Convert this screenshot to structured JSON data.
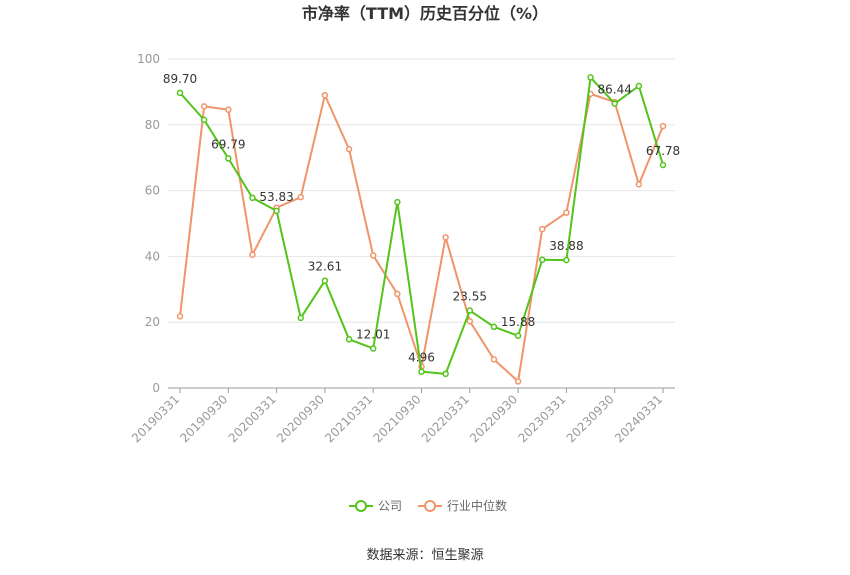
{
  "chart_data": {
    "type": "line",
    "title": "市净率（TTM）历史百分位（%）",
    "ylim": [
      0,
      100
    ],
    "yticks": [
      "0",
      "20",
      "40",
      "60",
      "80",
      "100"
    ],
    "categories": [
      "20190331",
      "20190630",
      "20190930",
      "20191231",
      "20200331",
      "20200630",
      "20200930",
      "20201231",
      "20210331",
      "20210630",
      "20210930",
      "20211231",
      "20220331",
      "20220630",
      "20220930",
      "20221231",
      "20230331",
      "20230630",
      "20230930",
      "20231231",
      "20240331"
    ],
    "x_tick_labels": [
      "20190331",
      "20190930",
      "20200331",
      "20200930",
      "20210331",
      "20210930",
      "20220331",
      "20220930",
      "20230331",
      "20230930",
      "20240331"
    ],
    "series": [
      {
        "name": "公司",
        "color": "#52c41a",
        "values": [
          89.7,
          81.5,
          69.79,
          57.8,
          53.83,
          21.3,
          32.61,
          14.8,
          12.01,
          56.5,
          4.96,
          4.3,
          23.55,
          18.6,
          15.88,
          39.0,
          38.88,
          94.4,
          86.44,
          91.8,
          67.78
        ],
        "labels": [
          "89.70",
          "",
          "69.79",
          "",
          "53.83",
          "",
          "32.61",
          "",
          "12.01",
          "",
          "4.96",
          "",
          "23.55",
          "",
          "15.88",
          "",
          "38.88",
          "",
          "86.44",
          "",
          "67.78"
        ]
      },
      {
        "name": "行业中位数",
        "color": "#f0956a",
        "values": [
          21.8,
          85.6,
          84.6,
          40.5,
          54.8,
          58.0,
          89.0,
          72.6,
          40.3,
          28.6,
          6.5,
          45.8,
          20.3,
          8.7,
          2.0,
          48.3,
          53.3,
          89.4,
          86.9,
          61.9,
          79.6
        ],
        "labels": []
      }
    ],
    "legend_position": "bottom",
    "grid": true
  },
  "source_text": "数据来源：恒生聚源"
}
